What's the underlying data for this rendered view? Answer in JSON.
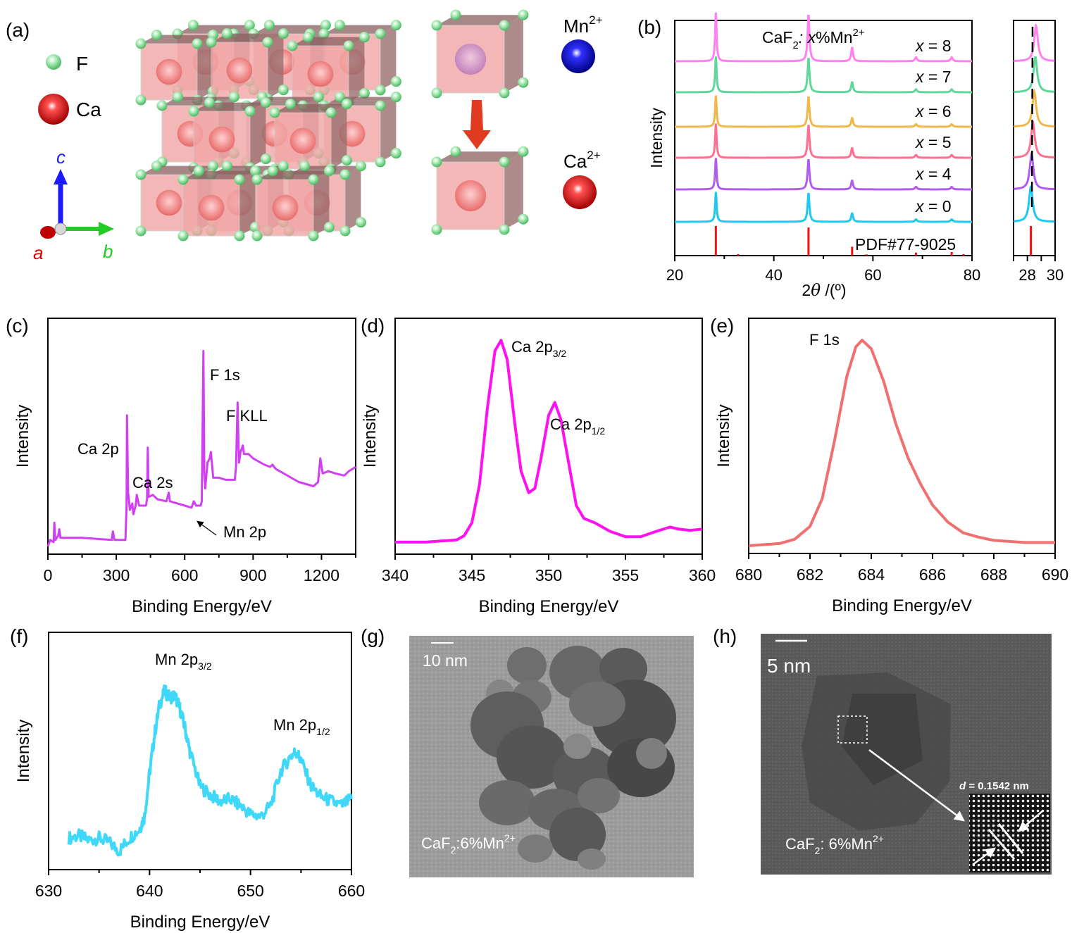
{
  "panel_labels": {
    "a": "(a)",
    "b": "(b)",
    "c": "(c)",
    "d": "(d)",
    "e": "(e)",
    "f": "(f)",
    "g": "(g)",
    "h": "(h)"
  },
  "panel_a": {
    "legend": [
      {
        "label": "F",
        "color": "#7ed58f"
      },
      {
        "label": "Ca",
        "color": "#e02020"
      }
    ],
    "axes": {
      "a": "a",
      "b": "b",
      "c": "c",
      "a_color": "#e00000",
      "b_color": "#22cc22",
      "c_color": "#1a1aff"
    },
    "substitution": [
      {
        "ion": "Mn",
        "charge": "2+",
        "color": "#1010cc"
      },
      {
        "ion": "Ca",
        "charge": "2+",
        "color": "#dd0000"
      }
    ],
    "arrow_color": "#e03a20"
  },
  "chart_data": [
    {
      "id": "b",
      "type": "line",
      "title": "",
      "annotation_main": "CaF",
      "annotation_sub": "2",
      "annotation_rest": ": x%Mn",
      "annotation_sup": "2+",
      "xlabel": "2θ /(°)",
      "ylabel": "Intensity",
      "xlim": [
        20,
        80
      ],
      "xticks": [
        20,
        40,
        60,
        80
      ],
      "peaks": [
        28.3,
        47.0,
        55.8,
        68.7,
        75.9
      ],
      "series": [
        {
          "name": "x = 8",
          "x": 8,
          "color": "#ff80f0",
          "peak_shift": 0.15
        },
        {
          "name": "x = 7",
          "x": 7,
          "color": "#5fd69a",
          "peak_shift": 0.13
        },
        {
          "name": "x = 6",
          "x": 6,
          "color": "#f0b84a",
          "peak_shift": 0.1
        },
        {
          "name": "x = 5",
          "x": 5,
          "color": "#ff7090",
          "peak_shift": 0.06
        },
        {
          "name": "x = 4",
          "x": 4,
          "color": "#b05cf0",
          "peak_shift": 0.02
        },
        {
          "name": "x = 0",
          "x": 0,
          "color": "#1ec8f0",
          "peak_shift": 0.0
        }
      ],
      "reference": {
        "name": "PDF#77-9025",
        "color": "#ee1111",
        "lines": [
          {
            "x": 28.3,
            "h": 1.0
          },
          {
            "x": 32.8,
            "h": 0.05
          },
          {
            "x": 47.0,
            "h": 0.95
          },
          {
            "x": 55.8,
            "h": 0.3
          },
          {
            "x": 58.7,
            "h": 0.04
          },
          {
            "x": 68.7,
            "h": 0.1
          },
          {
            "x": 75.9,
            "h": 0.12
          },
          {
            "x": 78.3,
            "h": 0.05
          }
        ]
      },
      "inset": {
        "xlim": [
          27,
          30
        ],
        "xticks": [
          28,
          30
        ],
        "ref_x": 28.25
      }
    },
    {
      "id": "c",
      "type": "line",
      "xlabel": "Binding  Energy/eV",
      "ylabel": "Intensity",
      "xlim": [
        0,
        1350
      ],
      "xticks": [
        0,
        300,
        600,
        900,
        1200
      ],
      "color": "#d040f0",
      "points": [
        [
          0,
          0.01
        ],
        [
          10,
          0.04
        ],
        [
          25,
          0.03
        ],
        [
          28,
          0.12
        ],
        [
          33,
          0.04
        ],
        [
          45,
          0.06
        ],
        [
          50,
          0.09
        ],
        [
          55,
          0.05
        ],
        [
          70,
          0.05
        ],
        [
          150,
          0.05
        ],
        [
          280,
          0.04
        ],
        [
          285,
          0.08
        ],
        [
          292,
          0.04
        ],
        [
          340,
          0.04
        ],
        [
          345,
          0.2
        ],
        [
          347,
          0.62
        ],
        [
          352,
          0.26
        ],
        [
          360,
          0.18
        ],
        [
          370,
          0.21
        ],
        [
          375,
          0.16
        ],
        [
          385,
          0.2
        ],
        [
          390,
          0.25
        ],
        [
          400,
          0.2
        ],
        [
          430,
          0.2
        ],
        [
          435,
          0.23
        ],
        [
          438,
          0.47
        ],
        [
          442,
          0.24
        ],
        [
          460,
          0.25
        ],
        [
          480,
          0.23
        ],
        [
          520,
          0.22
        ],
        [
          530,
          0.26
        ],
        [
          535,
          0.22
        ],
        [
          600,
          0.2
        ],
        [
          630,
          0.19
        ],
        [
          640,
          0.22
        ],
        [
          650,
          0.2
        ],
        [
          670,
          0.2
        ],
        [
          675,
          0.22
        ],
        [
          680,
          0.7
        ],
        [
          682,
          0.92
        ],
        [
          686,
          0.35
        ],
        [
          690,
          0.28
        ],
        [
          700,
          0.4
        ],
        [
          710,
          0.42
        ],
        [
          715,
          0.45
        ],
        [
          725,
          0.33
        ],
        [
          750,
          0.33
        ],
        [
          780,
          0.32
        ],
        [
          820,
          0.32
        ],
        [
          825,
          0.38
        ],
        [
          832,
          0.68
        ],
        [
          838,
          0.4
        ],
        [
          845,
          0.45
        ],
        [
          855,
          0.48
        ],
        [
          860,
          0.44
        ],
        [
          880,
          0.44
        ],
        [
          900,
          0.42
        ],
        [
          950,
          0.39
        ],
        [
          975,
          0.38
        ],
        [
          985,
          0.39
        ],
        [
          1000,
          0.37
        ],
        [
          1100,
          0.31
        ],
        [
          1165,
          0.29
        ],
        [
          1185,
          0.31
        ],
        [
          1195,
          0.42
        ],
        [
          1205,
          0.35
        ],
        [
          1230,
          0.36
        ],
        [
          1260,
          0.35
        ],
        [
          1300,
          0.34
        ],
        [
          1320,
          0.36
        ],
        [
          1350,
          0.38
        ]
      ],
      "annotations": [
        {
          "text": "Ca 2p",
          "x": 345
        },
        {
          "text": "Ca 2s",
          "x": 438
        },
        {
          "text": "F 1s",
          "x": 682
        },
        {
          "text": "F KLL",
          "x": 832
        },
        {
          "text": "Mn 2p",
          "x": 645
        }
      ]
    },
    {
      "id": "d",
      "type": "line",
      "xlabel": "Binding  Energy/eV",
      "ylabel": "Intensity",
      "xlim": [
        340,
        360
      ],
      "xticks": [
        340,
        345,
        350,
        355,
        360
      ],
      "color": "#ff10f0",
      "points": [
        [
          340,
          0.03
        ],
        [
          341,
          0.03
        ],
        [
          342,
          0.03
        ],
        [
          343,
          0.035
        ],
        [
          344,
          0.04
        ],
        [
          344.5,
          0.06
        ],
        [
          345,
          0.12
        ],
        [
          345.5,
          0.3
        ],
        [
          346,
          0.65
        ],
        [
          346.5,
          0.92
        ],
        [
          346.9,
          0.97
        ],
        [
          347.3,
          0.88
        ],
        [
          347.8,
          0.58
        ],
        [
          348.2,
          0.36
        ],
        [
          348.7,
          0.26
        ],
        [
          349.1,
          0.28
        ],
        [
          349.5,
          0.42
        ],
        [
          350,
          0.62
        ],
        [
          350.4,
          0.68
        ],
        [
          350.8,
          0.6
        ],
        [
          351.3,
          0.4
        ],
        [
          351.8,
          0.2
        ],
        [
          352.3,
          0.14
        ],
        [
          353,
          0.12
        ],
        [
          354,
          0.08
        ],
        [
          355,
          0.055
        ],
        [
          356,
          0.055
        ],
        [
          357,
          0.08
        ],
        [
          357.9,
          0.1
        ],
        [
          358.5,
          0.09
        ],
        [
          359.2,
          0.085
        ],
        [
          360,
          0.09
        ]
      ],
      "annotations": [
        {
          "text": "Ca 2p",
          "sub": "3/2",
          "x": 346.9
        },
        {
          "text": "Ca 2p",
          "sub": "1/2",
          "x": 350.4
        }
      ]
    },
    {
      "id": "e",
      "type": "line",
      "xlabel": "Binding  Energy/eV",
      "ylabel": "Intensity",
      "xlim": [
        680,
        690
      ],
      "xticks": [
        680,
        682,
        684,
        686,
        688,
        690
      ],
      "color": "#f07070",
      "points": [
        [
          680,
          0.01
        ],
        [
          681,
          0.02
        ],
        [
          681.5,
          0.04
        ],
        [
          682,
          0.1
        ],
        [
          682.4,
          0.23
        ],
        [
          682.8,
          0.5
        ],
        [
          683.2,
          0.8
        ],
        [
          683.5,
          0.94
        ],
        [
          683.7,
          0.97
        ],
        [
          684,
          0.93
        ],
        [
          684.4,
          0.78
        ],
        [
          684.8,
          0.58
        ],
        [
          685.2,
          0.42
        ],
        [
          685.6,
          0.3
        ],
        [
          686,
          0.2
        ],
        [
          686.5,
          0.12
        ],
        [
          687,
          0.07
        ],
        [
          687.5,
          0.05
        ],
        [
          688,
          0.035
        ],
        [
          689,
          0.025
        ],
        [
          690,
          0.025
        ]
      ],
      "annotations": [
        {
          "text": "F 1s",
          "x": 683.7
        }
      ]
    },
    {
      "id": "f",
      "type": "line",
      "xlabel": "Binding  Energy/eV",
      "ylabel": "Intensity",
      "xlim": [
        630,
        660
      ],
      "xticks": [
        630,
        640,
        650,
        660
      ],
      "color": "#40d8f8",
      "points": [
        [
          632,
          0.12
        ],
        [
          633,
          0.13
        ],
        [
          634,
          0.11
        ],
        [
          635,
          0.12
        ],
        [
          636,
          0.1
        ],
        [
          637,
          0.06
        ],
        [
          638,
          0.12
        ],
        [
          639,
          0.16
        ],
        [
          639.5,
          0.22
        ],
        [
          640,
          0.42
        ],
        [
          640.5,
          0.6
        ],
        [
          641,
          0.74
        ],
        [
          641.5,
          0.8
        ],
        [
          642,
          0.77
        ],
        [
          642.5,
          0.78
        ],
        [
          643,
          0.72
        ],
        [
          643.5,
          0.63
        ],
        [
          644,
          0.52
        ],
        [
          645,
          0.36
        ],
        [
          646,
          0.32
        ],
        [
          647,
          0.29
        ],
        [
          648,
          0.3
        ],
        [
          649,
          0.27
        ],
        [
          650,
          0.23
        ],
        [
          651,
          0.22
        ],
        [
          652,
          0.27
        ],
        [
          653,
          0.43
        ],
        [
          654,
          0.5
        ],
        [
          654.5,
          0.52
        ],
        [
          655,
          0.48
        ],
        [
          656,
          0.36
        ],
        [
          657,
          0.31
        ],
        [
          658,
          0.29
        ],
        [
          659,
          0.27
        ],
        [
          660,
          0.3
        ]
      ],
      "annotations": [
        {
          "text": "Mn 2p",
          "sub": "3/2",
          "x": 642
        },
        {
          "text": "Mn 2p",
          "sub": "1/2",
          "x": 654.3
        }
      ]
    }
  ],
  "panel_g": {
    "scale_bar": "10 nm",
    "caption_main": "CaF",
    "caption_sub": "2",
    "caption_rest": ":6%Mn",
    "caption_sup": "2+"
  },
  "panel_h": {
    "scale_bar": "5 nm",
    "caption_main": "CaF",
    "caption_sub": "2",
    "caption_rest": ": 6%Mn",
    "caption_sup": "2+",
    "d_spacing_label": "d",
    "d_spacing_value": " = 0.1542 nm"
  }
}
